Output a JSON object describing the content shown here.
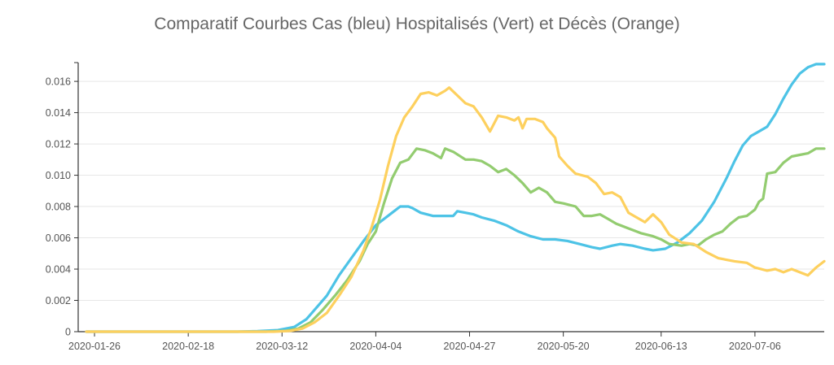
{
  "chart_data": {
    "type": "line",
    "title": "Comparatif Courbes Cas (bleu) Hospitalisés (Vert) et Décès (Orange)",
    "xlabel": "",
    "ylabel": "",
    "x_range": [
      "2020-01-22",
      "2020-07-23"
    ],
    "ylim": [
      0,
      0.0172
    ],
    "y_ticks": [
      "0",
      "0.002",
      "0.004",
      "0.006",
      "0.008",
      "0.010",
      "0.012",
      "0.014",
      "0.016"
    ],
    "x_ticks": [
      "2020-01-26",
      "2020-02-18",
      "2020-03-12",
      "2020-04-04",
      "2020-04-27",
      "2020-05-20",
      "2020-06-13",
      "2020-07-06"
    ],
    "grid": "horizontal",
    "legend": "none",
    "series": [
      {
        "color": "#4dc3e6",
        "points": [
          [
            "2020-01-24",
            0
          ],
          [
            "2020-03-01",
            0
          ],
          [
            "2020-03-06",
            3e-05
          ],
          [
            "2020-03-11",
            0.0001
          ],
          [
            "2020-03-15",
            0.0003
          ],
          [
            "2020-03-18",
            0.0008
          ],
          [
            "2020-03-20",
            0.0014
          ],
          [
            "2020-03-23",
            0.0023
          ],
          [
            "2020-03-26",
            0.0036
          ],
          [
            "2020-03-29",
            0.0047
          ],
          [
            "2020-04-01",
            0.0058
          ],
          [
            "2020-04-04",
            0.0068
          ],
          [
            "2020-04-08",
            0.0076
          ],
          [
            "2020-04-10",
            0.008
          ],
          [
            "2020-04-12",
            0.008
          ],
          [
            "2020-04-13",
            0.0079
          ],
          [
            "2020-04-15",
            0.0076
          ],
          [
            "2020-04-18",
            0.0074
          ],
          [
            "2020-04-21",
            0.0074
          ],
          [
            "2020-04-23",
            0.0074
          ],
          [
            "2020-04-24",
            0.0077
          ],
          [
            "2020-04-26",
            0.0076
          ],
          [
            "2020-04-28",
            0.0075
          ],
          [
            "2020-04-30",
            0.0073
          ],
          [
            "2020-05-03",
            0.0071
          ],
          [
            "2020-05-06",
            0.0068
          ],
          [
            "2020-05-09",
            0.0064
          ],
          [
            "2020-05-12",
            0.0061
          ],
          [
            "2020-05-15",
            0.0059
          ],
          [
            "2020-05-18",
            0.0059
          ],
          [
            "2020-05-21",
            0.0058
          ],
          [
            "2020-05-24",
            0.0056
          ],
          [
            "2020-05-27",
            0.0054
          ],
          [
            "2020-05-29",
            0.0053
          ],
          [
            "2020-06-01",
            0.0055
          ],
          [
            "2020-06-03",
            0.0056
          ],
          [
            "2020-06-06",
            0.0055
          ],
          [
            "2020-06-09",
            0.0053
          ],
          [
            "2020-06-11",
            0.0052
          ],
          [
            "2020-06-14",
            0.0053
          ],
          [
            "2020-06-17",
            0.0057
          ],
          [
            "2020-06-20",
            0.0063
          ],
          [
            "2020-06-23",
            0.0071
          ],
          [
            "2020-06-26",
            0.0083
          ],
          [
            "2020-06-29",
            0.0098
          ],
          [
            "2020-07-01",
            0.0109
          ],
          [
            "2020-07-03",
            0.0119
          ],
          [
            "2020-07-05",
            0.0125
          ],
          [
            "2020-07-07",
            0.0128
          ],
          [
            "2020-07-09",
            0.0131
          ],
          [
            "2020-07-11",
            0.0139
          ],
          [
            "2020-07-13",
            0.0149
          ],
          [
            "2020-07-15",
            0.0158
          ],
          [
            "2020-07-17",
            0.0165
          ],
          [
            "2020-07-19",
            0.0169
          ],
          [
            "2020-07-21",
            0.0171
          ],
          [
            "2020-07-23",
            0.0171
          ]
        ]
      },
      {
        "color": "#93cc70",
        "points": [
          [
            "2020-01-24",
            0
          ],
          [
            "2020-03-08",
            0
          ],
          [
            "2020-03-13",
            5e-05
          ],
          [
            "2020-03-16",
            0.0002
          ],
          [
            "2020-03-19",
            0.0006
          ],
          [
            "2020-03-22",
            0.0014
          ],
          [
            "2020-03-25",
            0.0023
          ],
          [
            "2020-03-28",
            0.0033
          ],
          [
            "2020-03-31",
            0.0045
          ],
          [
            "2020-04-02",
            0.0056
          ],
          [
            "2020-04-04",
            0.0064
          ],
          [
            "2020-04-06",
            0.0082
          ],
          [
            "2020-04-08",
            0.0098
          ],
          [
            "2020-04-10",
            0.0108
          ],
          [
            "2020-04-12",
            0.011
          ],
          [
            "2020-04-14",
            0.0117
          ],
          [
            "2020-04-16",
            0.0116
          ],
          [
            "2020-04-18",
            0.0114
          ],
          [
            "2020-04-20",
            0.0111
          ],
          [
            "2020-04-21",
            0.0117
          ],
          [
            "2020-04-23",
            0.0115
          ],
          [
            "2020-04-26",
            0.011
          ],
          [
            "2020-04-28",
            0.011
          ],
          [
            "2020-04-30",
            0.0109
          ],
          [
            "2020-05-02",
            0.0106
          ],
          [
            "2020-05-04",
            0.0102
          ],
          [
            "2020-05-06",
            0.0104
          ],
          [
            "2020-05-08",
            0.01
          ],
          [
            "2020-05-10",
            0.0095
          ],
          [
            "2020-05-12",
            0.0089
          ],
          [
            "2020-05-14",
            0.0092
          ],
          [
            "2020-05-16",
            0.0089
          ],
          [
            "2020-05-18",
            0.0083
          ],
          [
            "2020-05-20",
            0.0082
          ],
          [
            "2020-05-23",
            0.008
          ],
          [
            "2020-05-25",
            0.0074
          ],
          [
            "2020-05-27",
            0.0074
          ],
          [
            "2020-05-29",
            0.0075
          ],
          [
            "2020-05-31",
            0.0072
          ],
          [
            "2020-06-02",
            0.0069
          ],
          [
            "2020-06-05",
            0.0066
          ],
          [
            "2020-06-08",
            0.0063
          ],
          [
            "2020-06-11",
            0.0061
          ],
          [
            "2020-06-13",
            0.0059
          ],
          [
            "2020-06-15",
            0.0056
          ],
          [
            "2020-06-18",
            0.0055
          ],
          [
            "2020-06-20",
            0.0056
          ],
          [
            "2020-06-22",
            0.0055
          ],
          [
            "2020-06-24",
            0.0059
          ],
          [
            "2020-06-26",
            0.0062
          ],
          [
            "2020-06-28",
            0.0064
          ],
          [
            "2020-06-30",
            0.0069
          ],
          [
            "2020-07-02",
            0.0073
          ],
          [
            "2020-07-04",
            0.0074
          ],
          [
            "2020-07-06",
            0.0078
          ],
          [
            "2020-07-07",
            0.0083
          ],
          [
            "2020-07-08",
            0.0085
          ],
          [
            "2020-07-09",
            0.0101
          ],
          [
            "2020-07-11",
            0.0102
          ],
          [
            "2020-07-13",
            0.0108
          ],
          [
            "2020-07-15",
            0.0112
          ],
          [
            "2020-07-17",
            0.0113
          ],
          [
            "2020-07-19",
            0.0114
          ],
          [
            "2020-07-21",
            0.0117
          ],
          [
            "2020-07-23",
            0.0117
          ]
        ]
      },
      {
        "color": "#fdd05e",
        "points": [
          [
            "2020-01-24",
            0
          ],
          [
            "2020-03-10",
            0
          ],
          [
            "2020-03-14",
            5e-05
          ],
          [
            "2020-03-17",
            0.0002
          ],
          [
            "2020-03-20",
            0.0006
          ],
          [
            "2020-03-23",
            0.0012
          ],
          [
            "2020-03-26",
            0.0023
          ],
          [
            "2020-03-29",
            0.0035
          ],
          [
            "2020-04-01",
            0.0052
          ],
          [
            "2020-04-03",
            0.0067
          ],
          [
            "2020-04-05",
            0.0084
          ],
          [
            "2020-04-07",
            0.0106
          ],
          [
            "2020-04-09",
            0.0125
          ],
          [
            "2020-04-11",
            0.0137
          ],
          [
            "2020-04-13",
            0.0144
          ],
          [
            "2020-04-15",
            0.0152
          ],
          [
            "2020-04-17",
            0.0153
          ],
          [
            "2020-04-19",
            0.0151
          ],
          [
            "2020-04-21",
            0.0154
          ],
          [
            "2020-04-22",
            0.0156
          ],
          [
            "2020-04-24",
            0.0151
          ],
          [
            "2020-04-26",
            0.0146
          ],
          [
            "2020-04-28",
            0.0144
          ],
          [
            "2020-04-30",
            0.0137
          ],
          [
            "2020-05-02",
            0.0128
          ],
          [
            "2020-05-04",
            0.0138
          ],
          [
            "2020-05-06",
            0.0137
          ],
          [
            "2020-05-08",
            0.0135
          ],
          [
            "2020-05-09",
            0.0137
          ],
          [
            "2020-05-10",
            0.013
          ],
          [
            "2020-05-11",
            0.0136
          ],
          [
            "2020-05-13",
            0.0136
          ],
          [
            "2020-05-15",
            0.0134
          ],
          [
            "2020-05-16",
            0.013
          ],
          [
            "2020-05-18",
            0.0124
          ],
          [
            "2020-05-19",
            0.0112
          ],
          [
            "2020-05-21",
            0.0106
          ],
          [
            "2020-05-23",
            0.0101
          ],
          [
            "2020-05-26",
            0.0099
          ],
          [
            "2020-05-28",
            0.0095
          ],
          [
            "2020-05-30",
            0.0088
          ],
          [
            "2020-06-01",
            0.0089
          ],
          [
            "2020-06-03",
            0.0086
          ],
          [
            "2020-06-05",
            0.0076
          ],
          [
            "2020-06-07",
            0.0073
          ],
          [
            "2020-06-09",
            0.007
          ],
          [
            "2020-06-11",
            0.0075
          ],
          [
            "2020-06-13",
            0.007
          ],
          [
            "2020-06-15",
            0.0062
          ],
          [
            "2020-06-18",
            0.0057
          ],
          [
            "2020-06-21",
            0.0056
          ],
          [
            "2020-06-24",
            0.0051
          ],
          [
            "2020-06-27",
            0.0047
          ],
          [
            "2020-07-01",
            0.0045
          ],
          [
            "2020-07-04",
            0.0044
          ],
          [
            "2020-07-06",
            0.0041
          ],
          [
            "2020-07-09",
            0.0039
          ],
          [
            "2020-07-11",
            0.004
          ],
          [
            "2020-07-13",
            0.0038
          ],
          [
            "2020-07-15",
            0.004
          ],
          [
            "2020-07-17",
            0.0038
          ],
          [
            "2020-07-19",
            0.0036
          ],
          [
            "2020-07-21",
            0.0041
          ],
          [
            "2020-07-23",
            0.0045
          ]
        ]
      }
    ]
  }
}
